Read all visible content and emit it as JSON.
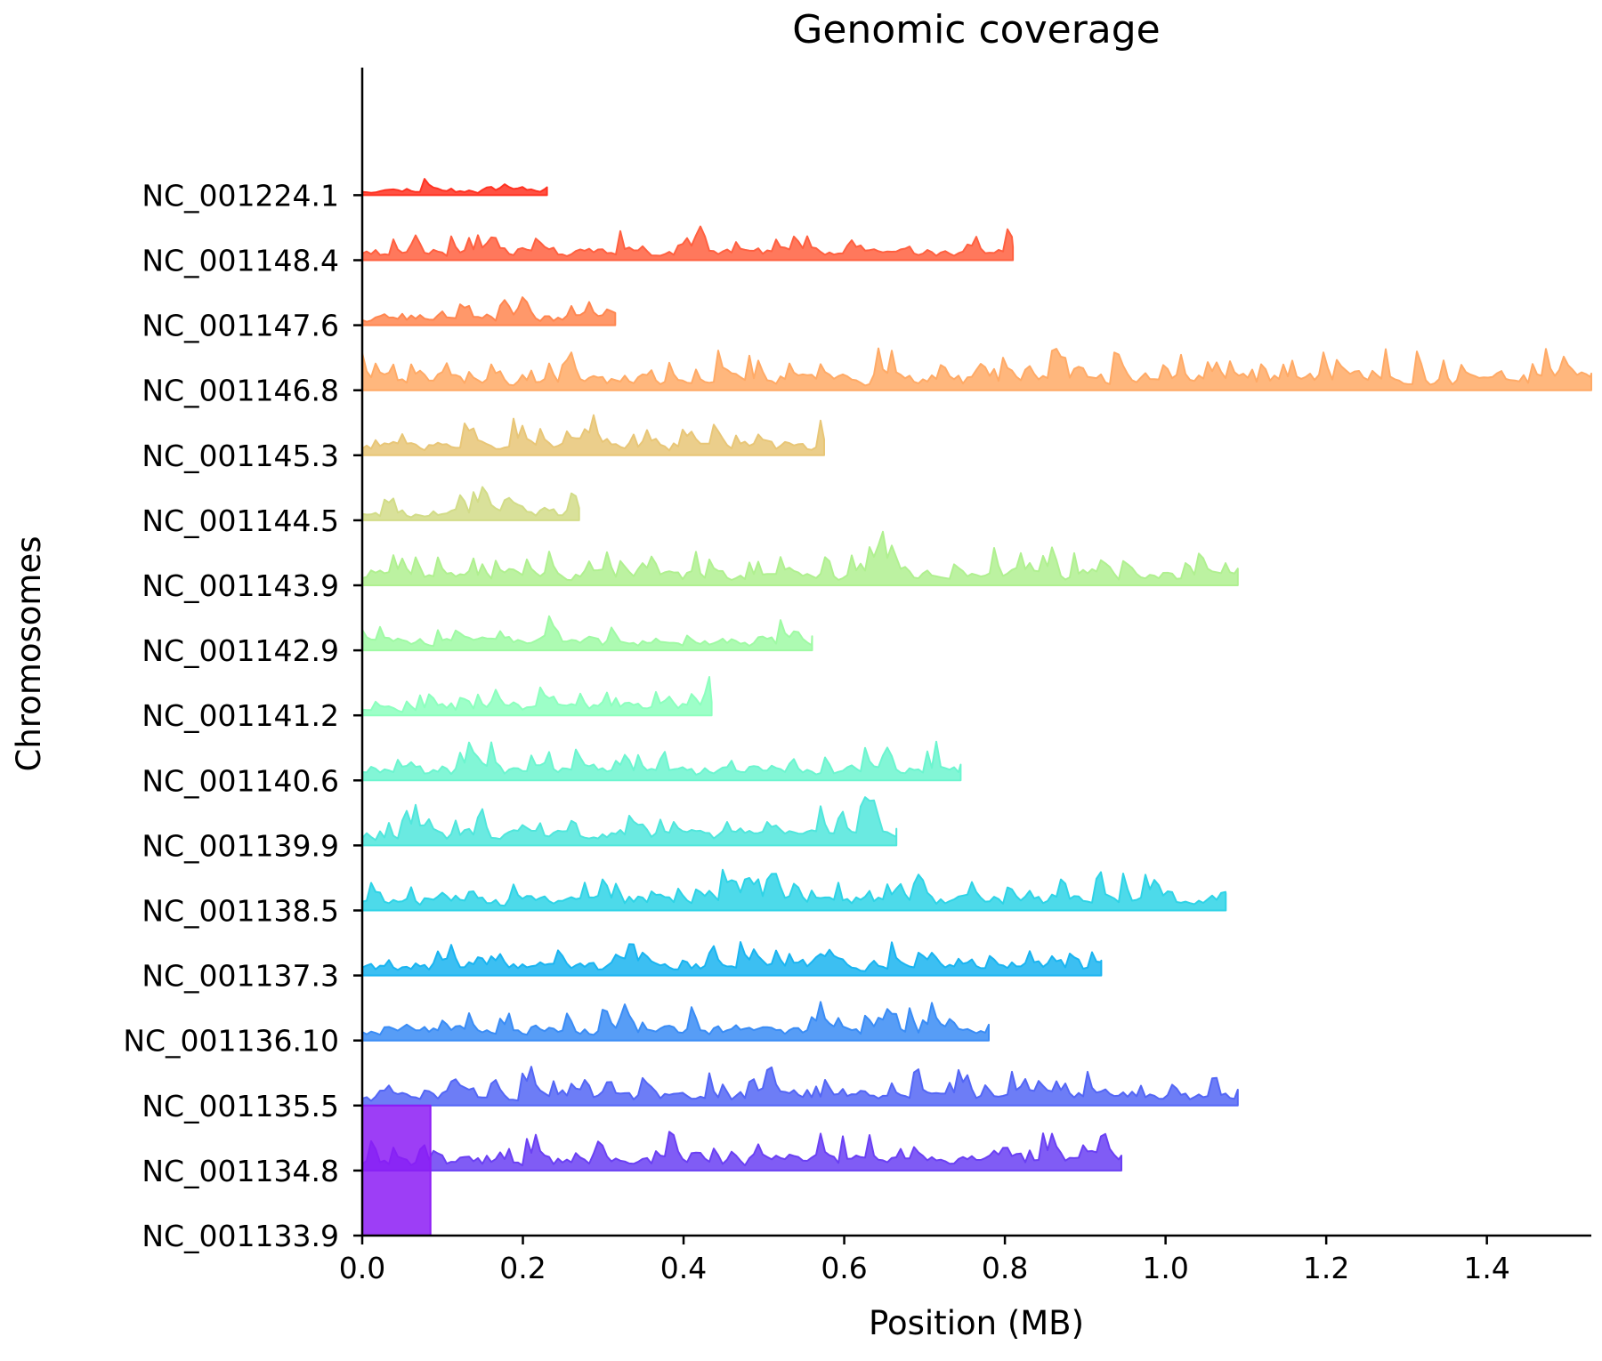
{
  "chart_data": {
    "type": "area",
    "title": "Genomic coverage",
    "xlabel": "Position (MB)",
    "ylabel": "Chromosomes",
    "xlim": [
      0,
      1.53
    ],
    "xticks": [
      "0.0",
      "0.2",
      "0.4",
      "0.6",
      "0.8",
      "1.0",
      "1.2",
      "1.4"
    ],
    "grid": false,
    "legend": "none",
    "series": [
      {
        "name": "NC_001224.1",
        "color": "#ff3322",
        "length": 0.23,
        "seed": 11,
        "peak": 0.45
      },
      {
        "name": "NC_001148.4",
        "color": "#ff6040",
        "length": 0.81,
        "seed": 23,
        "peak": 0.75
      },
      {
        "name": "NC_001147.6",
        "color": "#ff8650",
        "length": 0.315,
        "seed": 37,
        "peak": 0.7
      },
      {
        "name": "NC_001146.8",
        "color": "#ffaa66",
        "length": 1.53,
        "seed": 41,
        "peak": 0.95
      },
      {
        "name": "NC_001145.3",
        "color": "#e8c677",
        "length": 0.575,
        "seed": 53,
        "peak": 0.9
      },
      {
        "name": "NC_001144.5",
        "color": "#d2dc88",
        "length": 0.27,
        "seed": 67,
        "peak": 0.7
      },
      {
        "name": "NC_001143.9",
        "color": "#b0f090",
        "length": 1.09,
        "seed": 71,
        "peak": 0.95
      },
      {
        "name": "NC_001142.9",
        "color": "#9ffaa4",
        "length": 0.56,
        "seed": 83,
        "peak": 0.8
      },
      {
        "name": "NC_001141.2",
        "color": "#8cffbe",
        "length": 0.435,
        "seed": 97,
        "peak": 0.75
      },
      {
        "name": "NC_001140.6",
        "color": "#6cf5cf",
        "length": 0.745,
        "seed": 101,
        "peak": 0.9
      },
      {
        "name": "NC_001139.9",
        "color": "#50e6dc",
        "length": 0.665,
        "seed": 113,
        "peak": 0.95
      },
      {
        "name": "NC_001138.5",
        "color": "#2ed3e6",
        "length": 1.075,
        "seed": 127,
        "peak": 0.95
      },
      {
        "name": "NC_001137.3",
        "color": "#1ab4f0",
        "length": 0.92,
        "seed": 131,
        "peak": 0.85
      },
      {
        "name": "NC_001136.10",
        "color": "#3a8cf5",
        "length": 0.78,
        "seed": 149,
        "peak": 0.9
      },
      {
        "name": "NC_001135.5",
        "color": "#5366f5",
        "length": 1.09,
        "seed": 157,
        "peak": 0.9
      },
      {
        "name": "NC_001134.8",
        "color": "#6a40f3",
        "length": 0.945,
        "seed": 163,
        "peak": 0.85
      },
      {
        "name": "NC_001133.9",
        "color": "#8c1cf5",
        "length": 0.085,
        "seed": 0,
        "peak": 2.0,
        "flat": true
      }
    ]
  }
}
